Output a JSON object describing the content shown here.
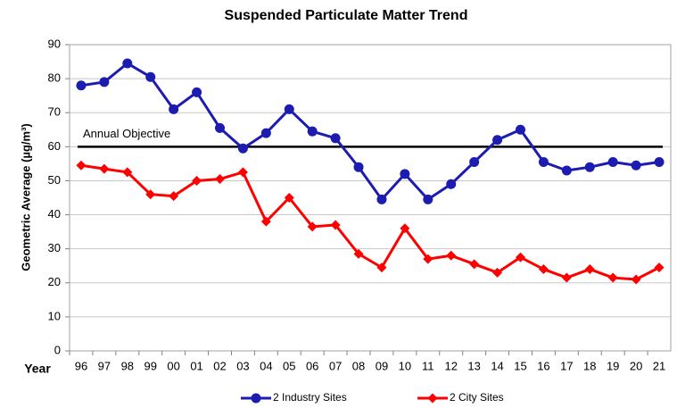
{
  "chart_data": {
    "type": "line",
    "title": "Suspended Particulate Matter Trend",
    "y_label": "Geometric Average (µg/m³)",
    "x_label": "Year",
    "categories": [
      "96",
      "97",
      "98",
      "99",
      "00",
      "01",
      "02",
      "03",
      "04",
      "05",
      "06",
      "07",
      "08",
      "09",
      "10",
      "11",
      "12",
      "13",
      "14",
      "15",
      "16",
      "17",
      "18",
      "19",
      "20",
      "21"
    ],
    "series": [
      {
        "name": "2 Industry Sites",
        "color": "#1c1cb0",
        "marker": "circle",
        "values": [
          78,
          79,
          84.5,
          80.5,
          71,
          76,
          65.5,
          59.5,
          64,
          71,
          64.5,
          62.5,
          54,
          44.5,
          52,
          44.5,
          49,
          55.5,
          62,
          65,
          55.5,
          53,
          54,
          55.5,
          54.5,
          55.5
        ]
      },
      {
        "name": "2 City Sites",
        "color": "#ff0000",
        "marker": "diamond",
        "values": [
          54.5,
          53.5,
          52.5,
          46,
          45.5,
          50,
          50.5,
          52.5,
          38,
          45,
          36.5,
          37,
          28.5,
          24.5,
          36,
          27,
          28,
          25.5,
          23,
          27.5,
          24,
          21.5,
          24,
          21.5,
          21,
          24.5
        ]
      }
    ],
    "reference_line": {
      "value": 60,
      "label": "Annual Objective",
      "color": "#000000"
    },
    "ylim": [
      0,
      90
    ],
    "yticks": [
      0,
      10,
      20,
      30,
      40,
      50,
      60,
      70,
      80,
      90
    ],
    "grid": true,
    "legend": "bottom"
  }
}
